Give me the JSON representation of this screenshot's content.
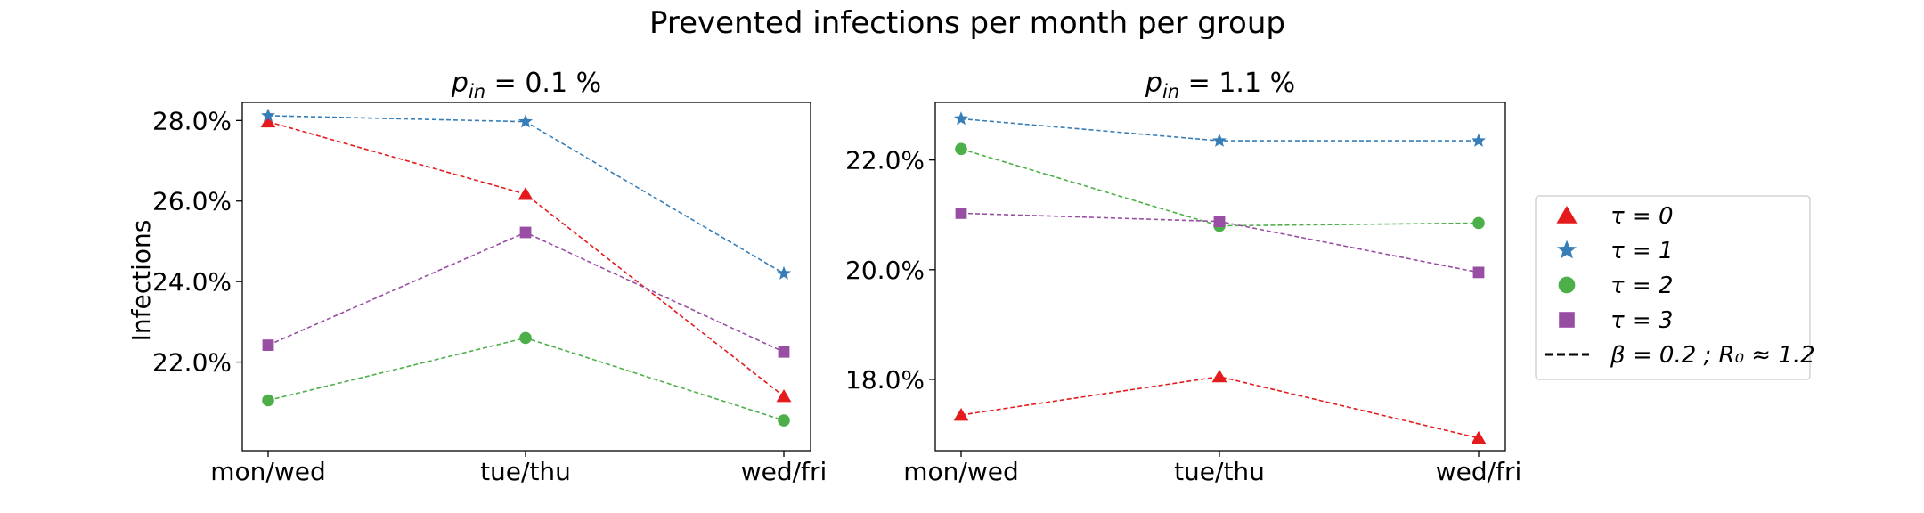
{
  "figure": {
    "title": "Prevented infections per month per group",
    "ylabel": "Infections"
  },
  "colors": {
    "tau0": "#e41a1c",
    "tau1": "#377eb8",
    "tau2": "#4daf4a",
    "tau3": "#984ea3"
  },
  "legend": {
    "placement": "right",
    "entries": [
      {
        "label": "τ = 0",
        "marker": "triangle",
        "color": "#e41a1c"
      },
      {
        "label": "τ = 1",
        "marker": "star",
        "color": "#377eb8"
      },
      {
        "label": "τ = 2",
        "marker": "circle",
        "color": "#4daf4a"
      },
      {
        "label": "τ = 3",
        "marker": "square",
        "color": "#984ea3"
      },
      {
        "label": "β = 0.2 ; R₀ ≈ 1.2",
        "marker": "dashed-line",
        "color": "#000000"
      }
    ]
  },
  "chart_data": [
    {
      "type": "line",
      "title": "p_in = 0.1 %",
      "title_main": "p",
      "title_sub": "in",
      "title_rest": " = 0.1 %",
      "categories": [
        "mon/wed",
        "tue/thu",
        "wed/fri"
      ],
      "ylim": [
        19.8,
        28.45
      ],
      "yticks": [
        22,
        24,
        26,
        28
      ],
      "ytick_labels": [
        "22.0%",
        "24.0%",
        "26.0%",
        "28.0%"
      ],
      "grid": false,
      "line_style": "dashed",
      "series": [
        {
          "name": "τ = 0",
          "marker": "triangle",
          "color": "#e41a1c",
          "values": [
            27.97,
            26.17,
            21.15
          ]
        },
        {
          "name": "τ = 1",
          "marker": "star",
          "color": "#377eb8",
          "values": [
            28.12,
            27.97,
            24.2
          ]
        },
        {
          "name": "τ = 2",
          "marker": "circle",
          "color": "#4daf4a",
          "values": [
            21.05,
            22.6,
            20.55
          ]
        },
        {
          "name": "τ = 3",
          "marker": "square",
          "color": "#984ea3",
          "values": [
            22.42,
            25.22,
            22.25
          ]
        }
      ]
    },
    {
      "type": "line",
      "title": "p_in = 1.1 %",
      "title_main": "p",
      "title_sub": "in",
      "title_rest": " = 1.1 %",
      "categories": [
        "mon/wed",
        "tue/thu",
        "wed/fri"
      ],
      "ylim": [
        16.7,
        23.05
      ],
      "yticks": [
        18,
        20,
        22
      ],
      "ytick_labels": [
        "18.0%",
        "20.0%",
        "22.0%"
      ],
      "grid": false,
      "line_style": "dashed",
      "series": [
        {
          "name": "τ = 0",
          "marker": "triangle",
          "color": "#e41a1c",
          "values": [
            17.35,
            18.05,
            16.93
          ]
        },
        {
          "name": "τ = 1",
          "marker": "star",
          "color": "#377eb8",
          "values": [
            22.75,
            22.35,
            22.35
          ]
        },
        {
          "name": "τ = 2",
          "marker": "circle",
          "color": "#4daf4a",
          "values": [
            22.2,
            20.8,
            20.85
          ]
        },
        {
          "name": "τ = 3",
          "marker": "square",
          "color": "#984ea3",
          "values": [
            21.03,
            20.88,
            19.95
          ]
        }
      ]
    }
  ]
}
